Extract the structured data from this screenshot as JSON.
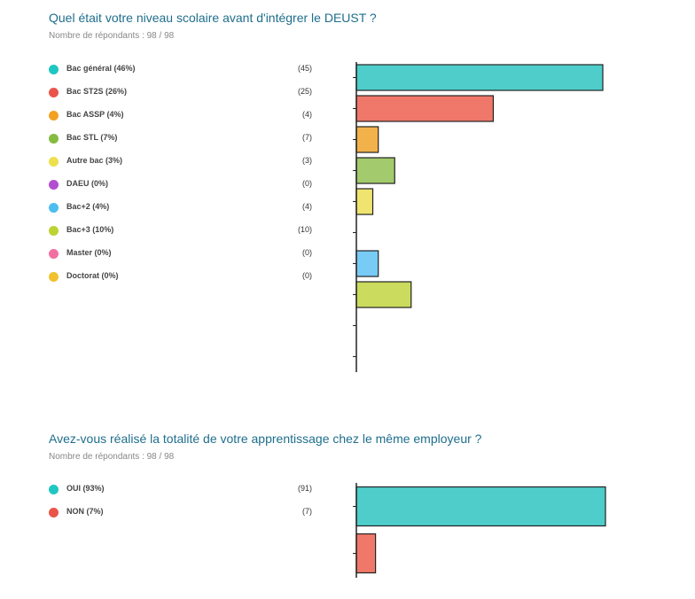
{
  "chart_data": [
    {
      "type": "bar",
      "title": "Quel était votre niveau scolaire avant d'intégrer le DEUST ?",
      "subtitle": "Nombre de répondants : 98 / 98",
      "categories": [
        "Bac général (46%)",
        "Bac ST2S (26%)",
        "Bac ASSP (4%)",
        "Bac STL (7%)",
        "Autre bac (3%)",
        "DAEU (0%)",
        "Bac+2 (4%)",
        "Bac+3 (10%)",
        "Master (0%)",
        "Doctorat (0%)"
      ],
      "values": [
        45,
        25,
        4,
        7,
        3,
        0,
        4,
        10,
        0,
        0
      ],
      "count_labels": [
        "(45)",
        "(25)",
        "(4)",
        "(7)",
        "(3)",
        "(0)",
        "(4)",
        "(10)",
        "(0)",
        "(0)"
      ],
      "dot_colors": [
        "#1fc6c2",
        "#e9544b",
        "#f3a120",
        "#86bb42",
        "#ece04c",
        "#b24ed0",
        "#4dbdf0",
        "#bdd233",
        "#f270a1",
        "#f1c22d"
      ],
      "bar_colors": [
        "#4ecdcb",
        "#f0786a",
        "#f2b24b",
        "#a3ca6c",
        "#efe470",
        "#c07ad9",
        "#77cbf5",
        "#cbdb5d",
        "#f597bc",
        "#f3d26a"
      ],
      "xlim": [
        0,
        45
      ]
    },
    {
      "type": "bar",
      "title": "Avez-vous réalisé la totalité de votre apprentissage chez le même employeur ?",
      "subtitle": "Nombre de répondants : 98 / 98",
      "categories": [
        "OUI (93%)",
        "NON (7%)"
      ],
      "values": [
        91,
        7
      ],
      "count_labels": [
        "(91)",
        "(7)"
      ],
      "dot_colors": [
        "#1fc6c2",
        "#e9544b"
      ],
      "bar_colors": [
        "#4ecdcb",
        "#f0786a"
      ],
      "xlim": [
        0,
        91
      ]
    }
  ]
}
